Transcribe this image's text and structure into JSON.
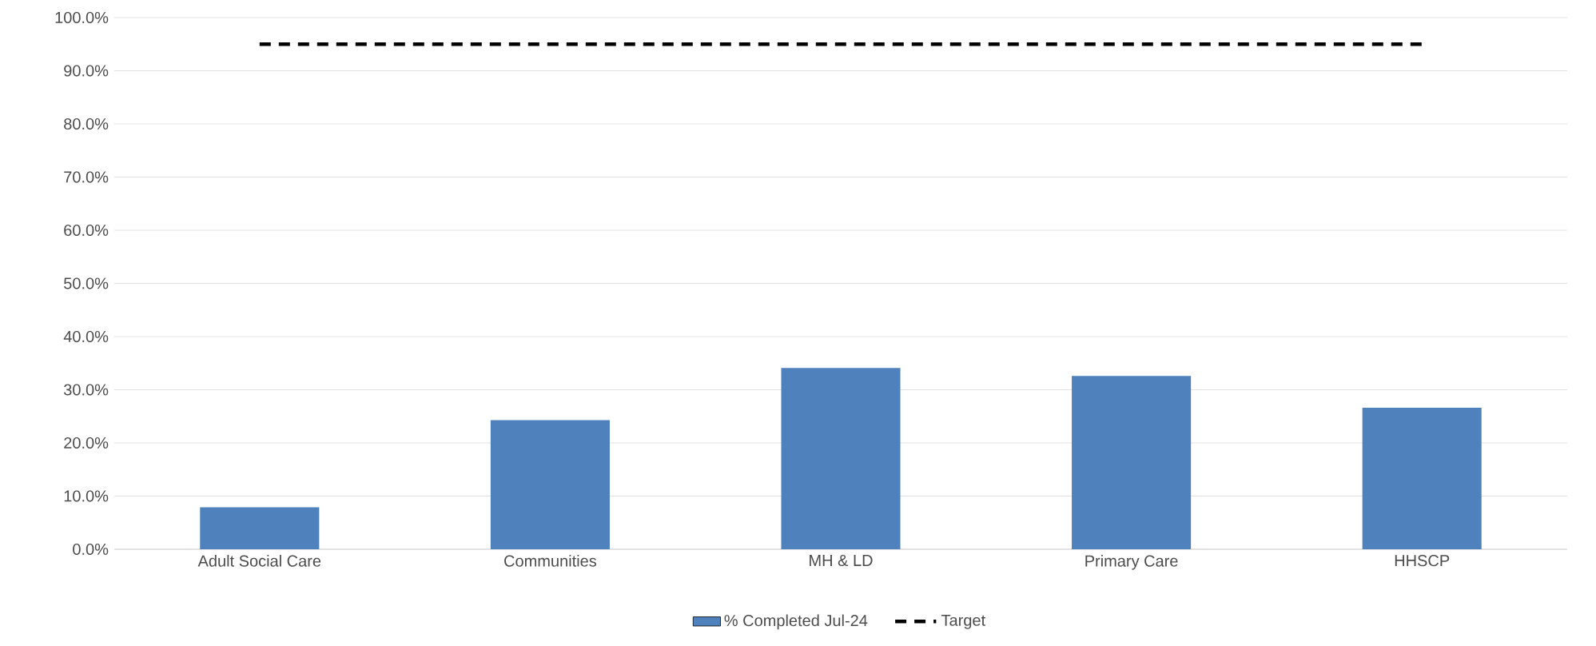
{
  "chart_data": {
    "type": "bar",
    "categories": [
      "Adult Social Care",
      "Communities",
      "MH & LD",
      "Primary Care",
      "HHSCP"
    ],
    "series": [
      {
        "name": "% Completed Jul-24",
        "color": "#4f81bd",
        "values": [
          7.9,
          24.3,
          34.1,
          32.6,
          26.6
        ]
      },
      {
        "name": "Target",
        "type": "line",
        "color": "#000000",
        "line_style": "dashed",
        "values": [
          95,
          95,
          95,
          95,
          95
        ]
      }
    ],
    "ylim": [
      0,
      100
    ],
    "yticks": [
      {
        "value": 0,
        "label": "0.0%"
      },
      {
        "value": 10,
        "label": "10.0%"
      },
      {
        "value": 20,
        "label": "20.0%"
      },
      {
        "value": 30,
        "label": "30.0%"
      },
      {
        "value": 40,
        "label": "40.0%"
      },
      {
        "value": 50,
        "label": "50.0%"
      },
      {
        "value": 60,
        "label": "60.0%"
      },
      {
        "value": 70,
        "label": "70.0%"
      },
      {
        "value": 80,
        "label": "80.0%"
      },
      {
        "value": 90,
        "label": "90.0%"
      },
      {
        "value": 100,
        "label": "100.0%"
      }
    ],
    "grid": "y",
    "legend": "bottom"
  }
}
